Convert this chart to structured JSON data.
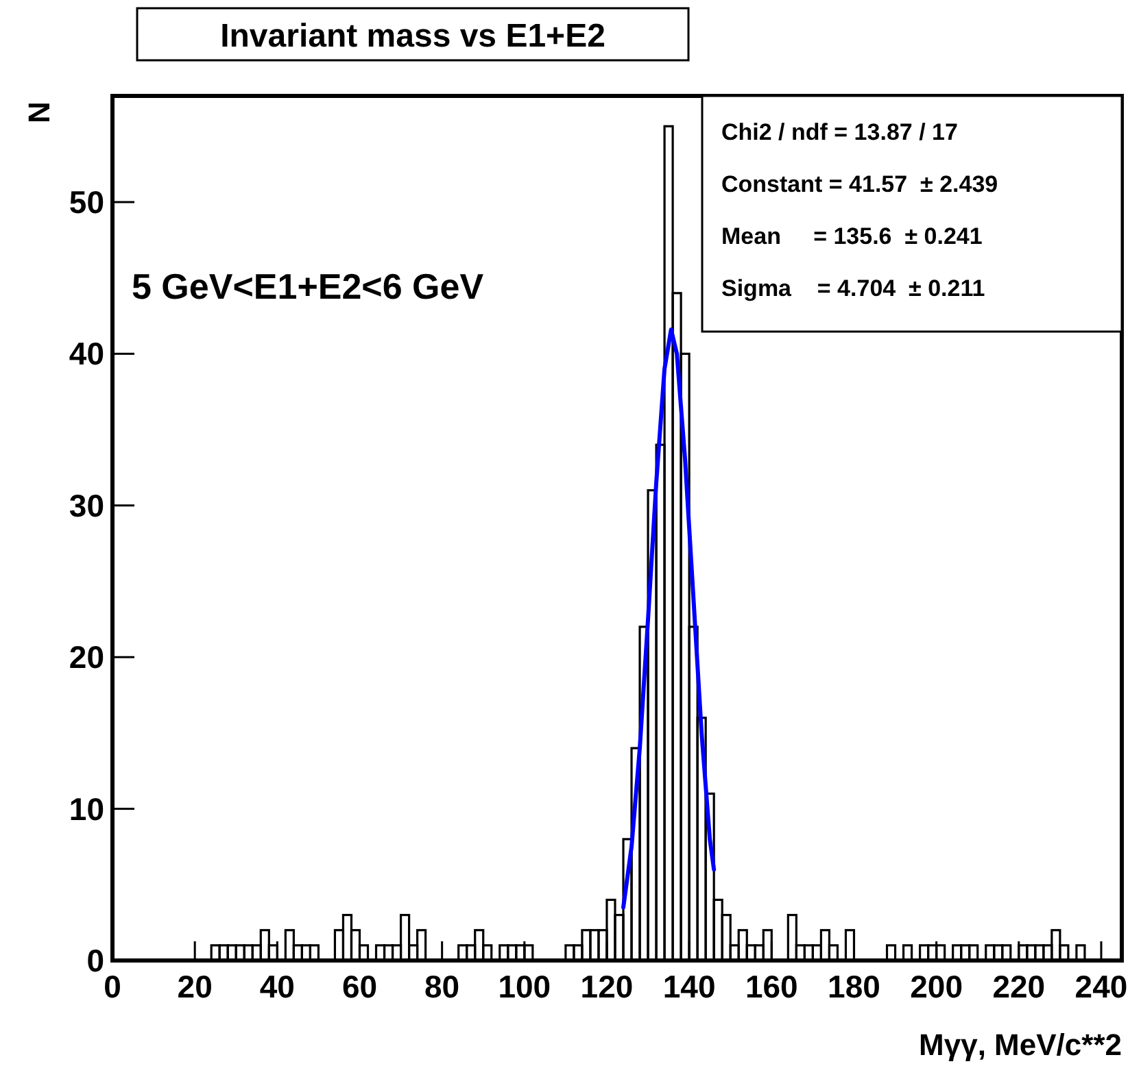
{
  "chart_data": {
    "type": "histogram",
    "title": "Invariant mass vs E1+E2",
    "xlabel": "Mγγ, MeV/c**2",
    "ylabel": "N",
    "annotations": [
      "5 GeV<E1+E2<6 GeV",
      "Chi2 / ndf = 13.87 / 17",
      "Constant = 41.57  ± 2.439",
      "Mean     = 135.6  ± 0.241",
      "Sigma    = 4.704  ± 0.211"
    ],
    "bins": [
      0,
      2,
      4,
      6,
      8,
      10,
      12,
      14,
      16,
      18,
      20,
      22,
      24,
      26,
      28,
      30,
      32,
      34,
      36,
      38,
      40,
      42,
      44,
      46,
      48,
      50,
      52,
      54,
      56,
      58,
      60,
      62,
      64,
      66,
      68,
      70,
      72,
      74,
      76,
      78,
      80,
      82,
      84,
      86,
      88,
      90,
      92,
      94,
      96,
      98,
      100,
      102,
      104,
      106,
      108,
      110,
      112,
      114,
      116,
      118,
      120,
      122,
      124,
      126,
      128,
      130,
      132,
      134,
      136,
      138,
      140,
      142,
      144,
      146,
      148,
      150,
      152,
      154,
      156,
      158,
      160,
      162,
      164,
      166,
      168,
      170,
      172,
      174,
      176,
      178,
      180,
      182,
      184,
      186,
      188,
      190,
      192,
      194,
      196,
      198,
      200,
      202,
      204,
      206,
      208,
      210,
      212,
      214,
      216,
      218,
      220,
      222,
      224,
      226,
      228,
      230,
      232,
      234,
      236,
      238,
      240,
      242,
      244
    ],
    "series": [
      {
        "color": "#000000",
        "values": [
          0,
          0,
          0,
          0,
          0,
          0,
          0,
          0,
          0,
          0,
          0,
          0,
          1,
          1,
          1,
          1,
          1,
          1,
          2,
          1,
          0,
          2,
          1,
          1,
          1,
          0,
          0,
          2,
          3,
          2,
          1,
          0,
          1,
          1,
          1,
          3,
          1,
          2,
          0,
          0,
          0,
          0,
          1,
          1,
          2,
          1,
          0,
          1,
          1,
          1,
          1,
          0,
          0,
          0,
          0,
          1,
          1,
          2,
          2,
          2,
          4,
          3,
          8,
          14,
          22,
          31,
          34,
          55,
          44,
          40,
          22,
          16,
          11,
          4,
          3,
          1,
          2,
          1,
          1,
          2,
          0,
          0,
          3,
          1,
          1,
          1,
          2,
          1,
          0,
          2,
          0,
          0,
          0,
          0,
          1,
          0,
          1,
          0,
          1,
          1,
          1,
          0,
          1,
          1,
          1,
          0,
          1,
          1,
          1,
          0,
          1,
          1,
          1,
          1,
          2,
          1,
          0,
          1,
          0,
          0,
          0,
          0
        ]
      },
      {
        "type": "line",
        "color": "#0000ff",
        "x": [
          124,
          126,
          128,
          130,
          132,
          134,
          135.6,
          137,
          139,
          141,
          143,
          145,
          146
        ],
        "values": [
          3.5,
          7.5,
          14,
          22.5,
          31.5,
          39,
          41.6,
          40,
          33,
          24,
          15,
          8,
          6
        ]
      }
    ],
    "xlim": [
      0,
      245
    ],
    "ylim": [
      0,
      57
    ],
    "xticks": [
      0,
      20,
      40,
      60,
      80,
      100,
      120,
      140,
      160,
      180,
      200,
      220,
      240
    ],
    "yticks": [
      0,
      10,
      20,
      30,
      40,
      50
    ],
    "grid": false
  }
}
